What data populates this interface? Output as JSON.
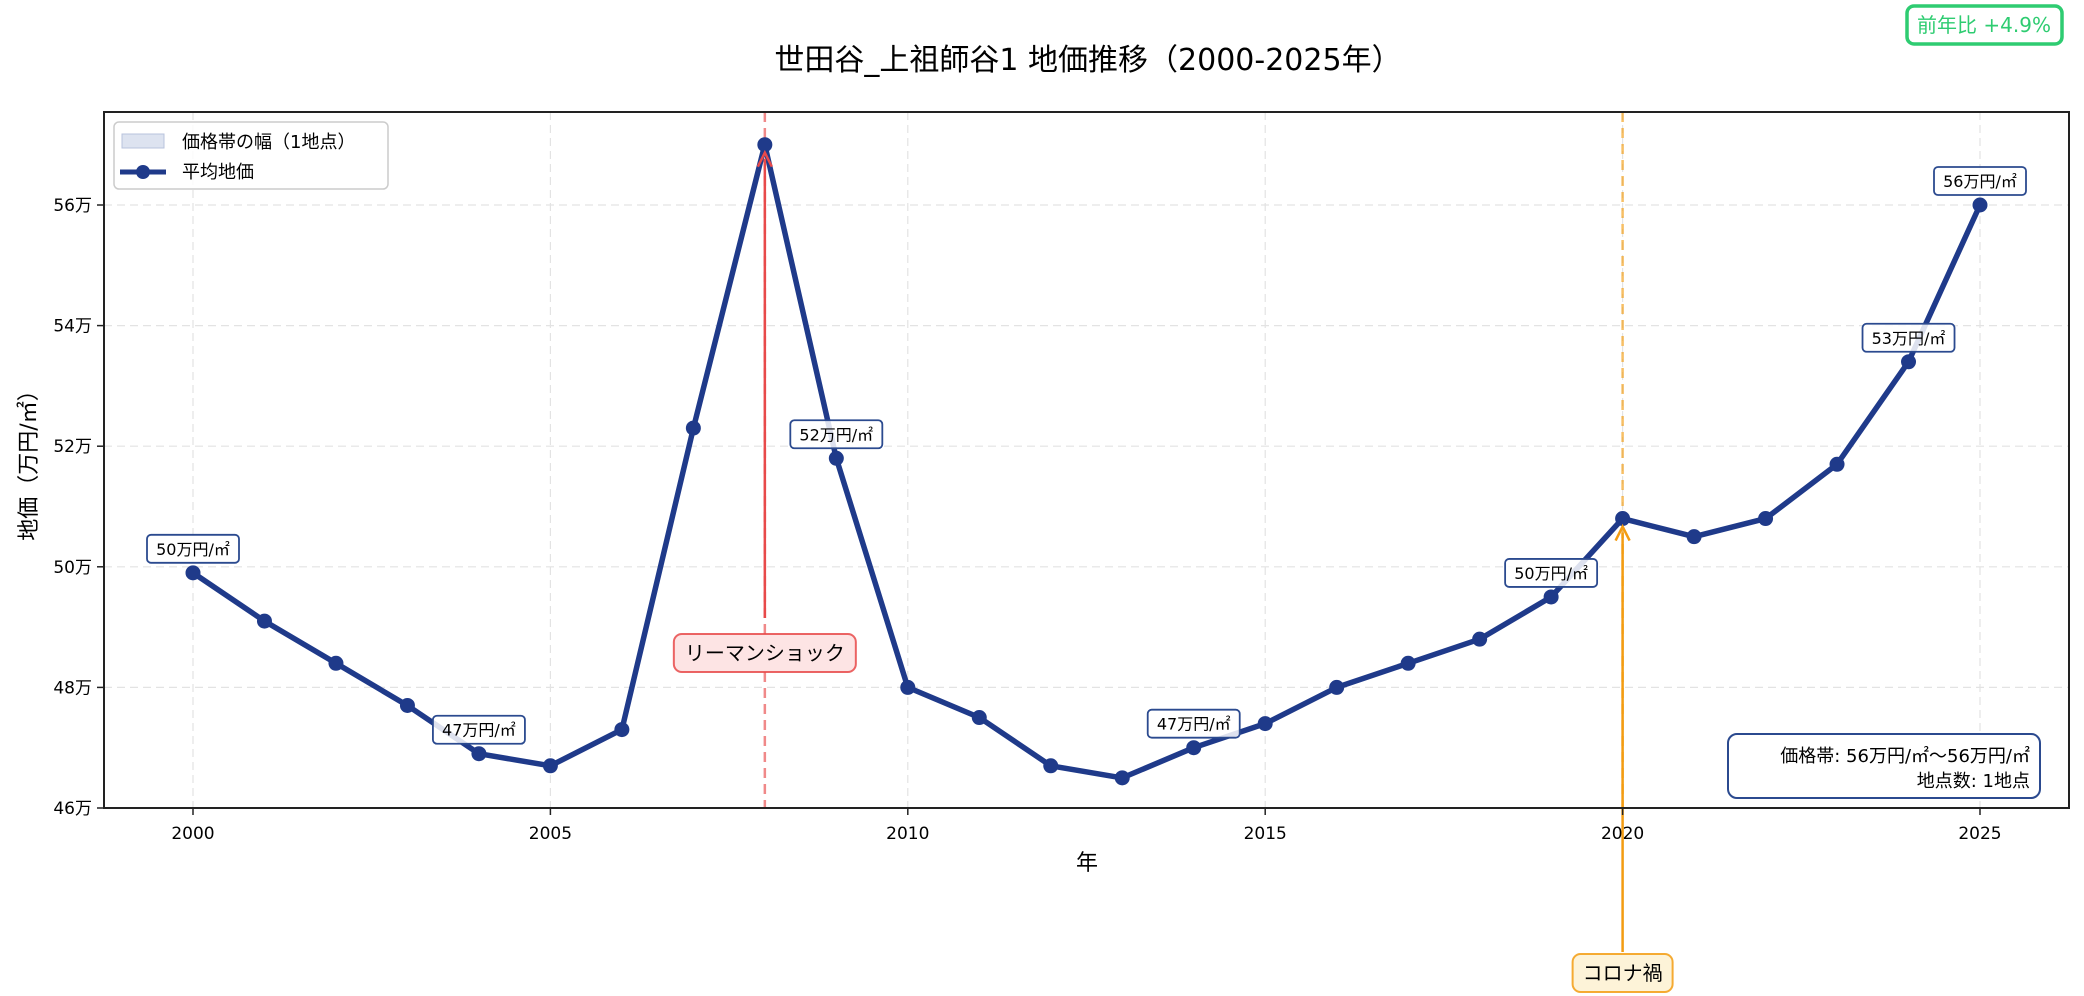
{
  "chart_data": {
    "type": "line",
    "title": "世田谷_上祖師谷1 地価推移（2000-2025年）",
    "xlabel": "年",
    "ylabel": "地価（万円/㎡）",
    "x": [
      2000,
      2001,
      2002,
      2003,
      2004,
      2005,
      2006,
      2007,
      2008,
      2009,
      2010,
      2011,
      2012,
      2013,
      2014,
      2015,
      2016,
      2017,
      2018,
      2019,
      2020,
      2021,
      2022,
      2023,
      2024,
      2025
    ],
    "series": [
      {
        "name": "平均地価",
        "color": "#1f3a8a",
        "values": [
          49.9,
          49.1,
          48.4,
          47.7,
          46.9,
          46.7,
          47.3,
          52.3,
          57.0,
          51.8,
          48.0,
          47.5,
          46.7,
          46.5,
          47.0,
          47.4,
          48.0,
          48.4,
          48.8,
          49.5,
          50.8,
          50.5,
          50.8,
          51.7,
          53.4,
          56.0
        ]
      }
    ],
    "band": {
      "name": "価格帯の幅（1地点）",
      "color": "#dde3f0"
    },
    "xlim": [
      1998.75,
      2026.3
    ],
    "ylim": [
      46.0,
      57.5
    ],
    "xticks": [
      2000,
      2005,
      2010,
      2015,
      2020,
      2025
    ],
    "xtick_labels": [
      "2000",
      "2005",
      "2010",
      "2015",
      "2020",
      "2025"
    ],
    "yticks": [
      46,
      48,
      50,
      52,
      54,
      56
    ],
    "ytick_labels": [
      "46万",
      "48万",
      "50万",
      "52万",
      "54万",
      "56万"
    ],
    "grid": true,
    "legend_position": "upper left",
    "point_labels": [
      {
        "year": 2000,
        "text": "50万円/㎡"
      },
      {
        "year": 2004,
        "text": "47万円/㎡"
      },
      {
        "year": 2009,
        "text": "52万円/㎡"
      },
      {
        "year": 2014,
        "text": "47万円/㎡"
      },
      {
        "year": 2019,
        "text": "50万円/㎡"
      },
      {
        "year": 2024,
        "text": "53万円/㎡"
      },
      {
        "year": 2025,
        "text": "56万円/㎡"
      }
    ],
    "events": [
      {
        "year": 2008,
        "label": "リーマンショック",
        "color": "#e84a4a",
        "box_fill": "#fde4e4"
      },
      {
        "year": 2020,
        "label": "コロナ禍",
        "color": "#f39c12",
        "box_fill": "#fdf3d8"
      }
    ],
    "info_box": {
      "line1": "価格帯: 56万円/㎡～56万円/㎡",
      "line2": "地点数: 1地点"
    },
    "yoy_badge": {
      "text": "前年比 +4.9%",
      "color": "#2ecc71"
    }
  },
  "legend": {
    "band_label": "価格帯の幅（1地点）",
    "line_label": "平均地価"
  }
}
